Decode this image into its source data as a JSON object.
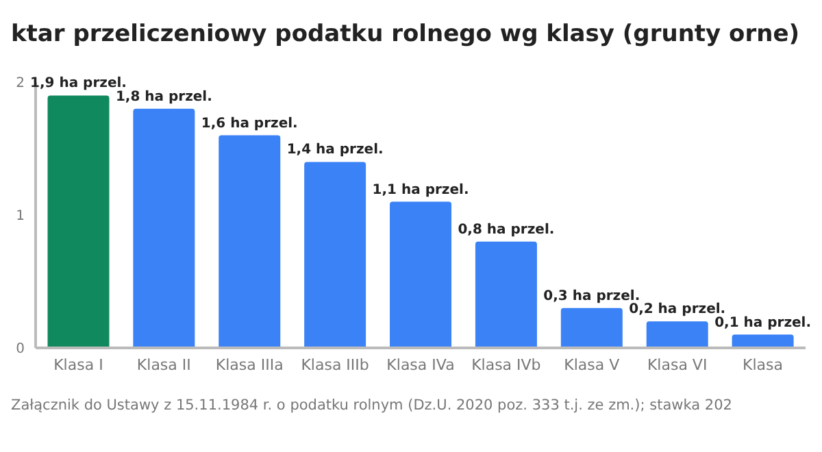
{
  "chart_data": {
    "type": "bar",
    "title": "ktar przeliczeniowy podatku rolnego wg klasy (grunty orne)",
    "categories": [
      "Klasa I",
      "Klasa II",
      "Klasa IIIa",
      "Klasa IIIb",
      "Klasa IVa",
      "Klasa IVb",
      "Klasa V",
      "Klasa VI",
      "Klasa"
    ],
    "values": [
      1.9,
      1.8,
      1.6,
      1.4,
      1.1,
      0.8,
      0.3,
      0.2,
      0.1
    ],
    "colors": [
      "#10895e",
      "#3b82f6",
      "#3b82f6",
      "#3b82f6",
      "#3b82f6",
      "#3b82f6",
      "#3b82f6",
      "#3b82f6",
      "#3b82f6"
    ],
    "value_labels": [
      "1,9 ha przel.",
      "1,8 ha przel.",
      "1,6 ha przel.",
      "1,4 ha przel.",
      "1,1 ha przel.",
      "0,8 ha przel.",
      "0,3 ha przel.",
      "0,2 ha przel.",
      "0,1 ha przel."
    ],
    "ylim": [
      0,
      2
    ],
    "yticks": [
      0,
      1,
      2
    ],
    "grid": false,
    "legend": false,
    "annotations": [
      "Załącznik do Ustawy z 15.11.1984 r. o podatku rolnym (Dz.U. 2020 poz. 333 t.j. ze zm.); stawka 202"
    ]
  }
}
